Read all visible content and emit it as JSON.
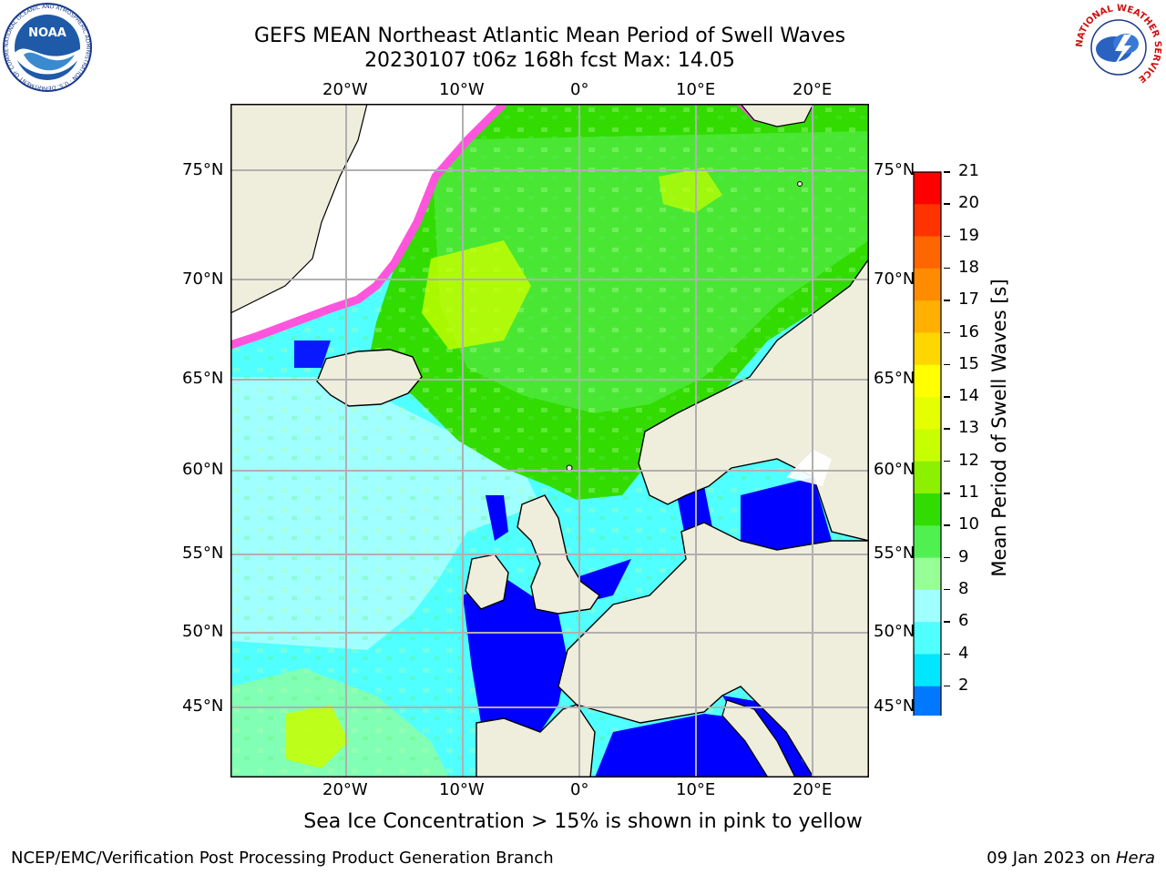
{
  "title": {
    "line1": "GEFS MEAN Northeast Atlantic Mean Period of Swell Waves",
    "line2": "20230107 t06z 168h fcst   Max: 14.05"
  },
  "logos": {
    "left": {
      "name": "noaa-logo",
      "text": "NOAA",
      "ring_text": "NATIONAL OCEANIC AND ATMOSPHERIC ADMINISTRATION · U.S. DEPARTMENT OF COMMERCE"
    },
    "right": {
      "name": "nws-logo",
      "ring_text": "NATIONAL WEATHER SERVICE"
    }
  },
  "map": {
    "lon_labels": [
      "20°W",
      "10°W",
      "0°",
      "10°E",
      "20°E"
    ],
    "lat_labels": [
      "75°N",
      "70°N",
      "65°N",
      "60°N",
      "55°N",
      "50°N",
      "45°N"
    ],
    "colors": {
      "land": "#efeddc",
      "ice_fill": "#ffffff",
      "ice_edge": "#ff55dd",
      "grid": "#b0b0b0"
    }
  },
  "colorbar": {
    "label": "Mean Period of Swell Waves [s]",
    "ticks": [
      "21",
      "20",
      "19",
      "18",
      "17",
      "16",
      "15",
      "14",
      "13",
      "12",
      "11",
      "10",
      "9",
      "8",
      "6",
      "4",
      "2"
    ],
    "bins_top_to_bottom": [
      {
        "color": "#ff0000"
      },
      {
        "color": "#ff3300"
      },
      {
        "color": "#ff6600"
      },
      {
        "color": "#ff8c00"
      },
      {
        "color": "#ffb000"
      },
      {
        "color": "#ffd700"
      },
      {
        "color": "#ffff00"
      },
      {
        "color": "#e6ff00"
      },
      {
        "color": "#c8ff00"
      },
      {
        "color": "#8cf000"
      },
      {
        "color": "#32dc00"
      },
      {
        "color": "#50f050"
      },
      {
        "color": "#96ff96"
      },
      {
        "color": "#a0ffff"
      },
      {
        "color": "#50ffff"
      },
      {
        "color": "#00e6ff"
      },
      {
        "color": "#0078ff"
      }
    ],
    "extend_color": "#0000ff"
  },
  "footer": {
    "note": "Sea Ice Concentration > 15% is shown in pink to yellow",
    "credit": "NCEP/EMC/Verification Post Processing Product Generation Branch",
    "date": "09 Jan 2023 on",
    "host": "Hera"
  }
}
